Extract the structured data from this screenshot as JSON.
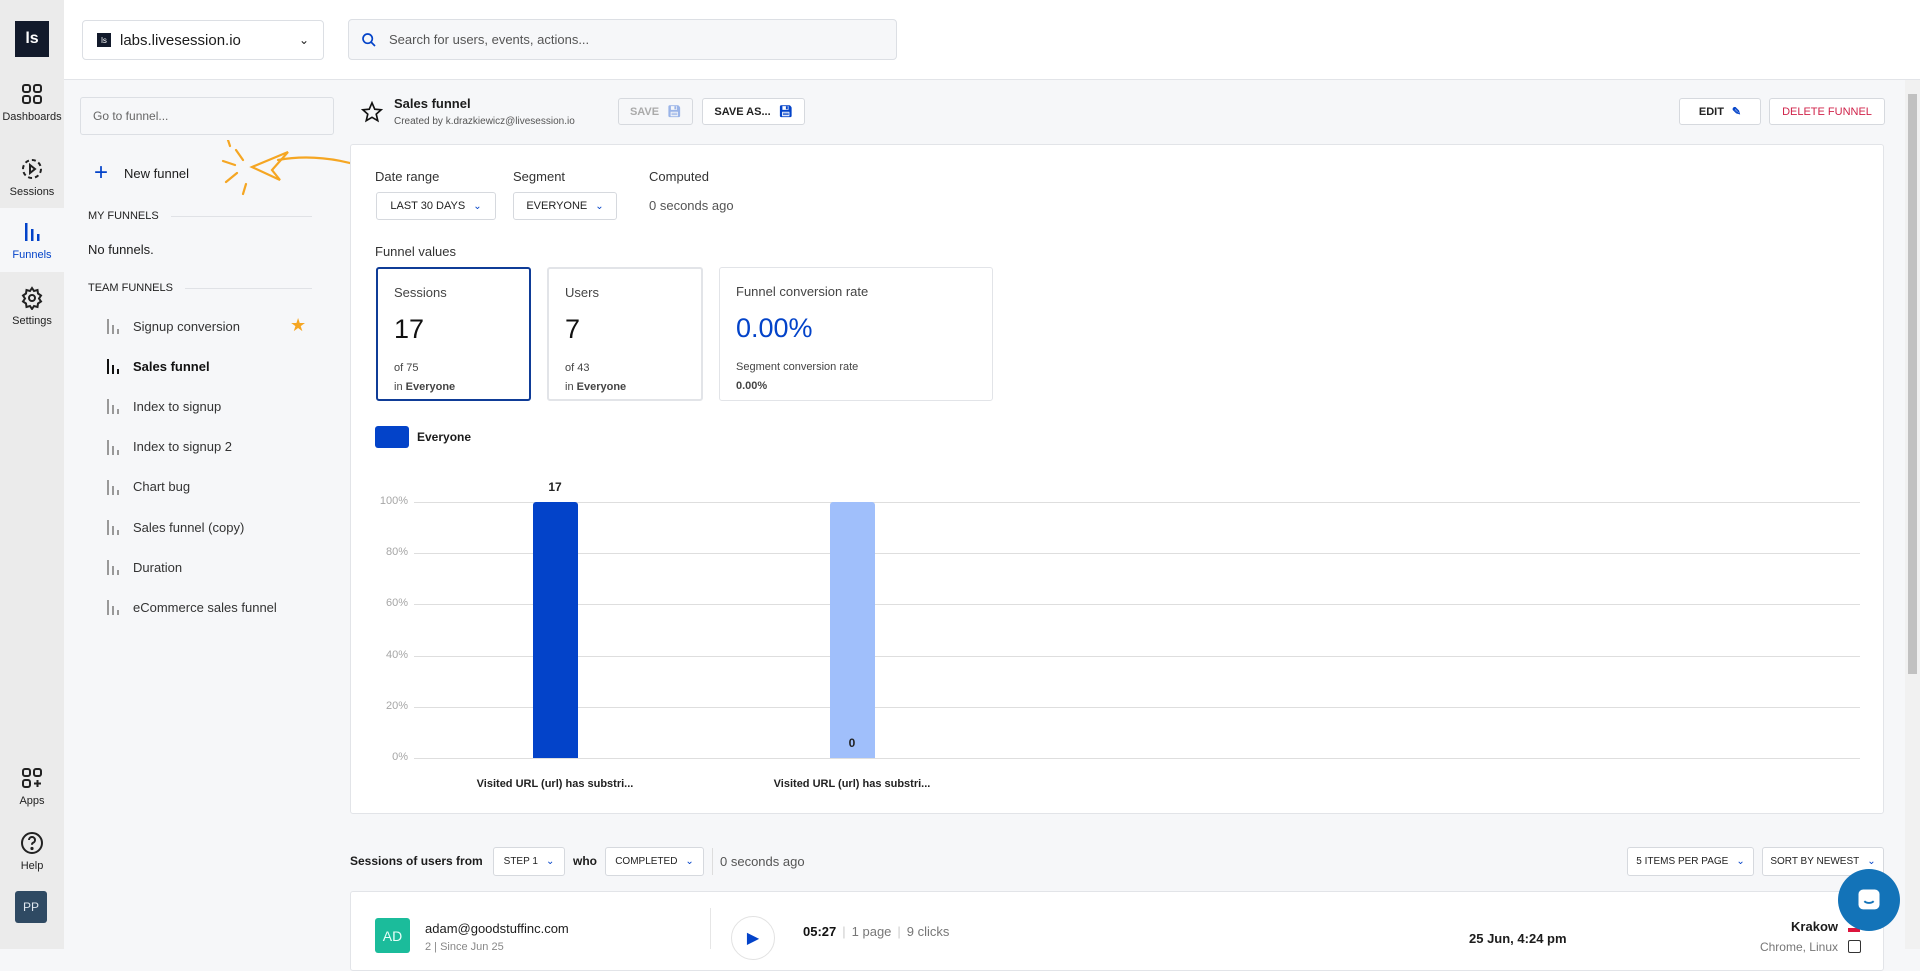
{
  "app": {
    "logo": "ls",
    "domain": "labs.livesession.io",
    "search_placeholder": "Search for users, events, actions..."
  },
  "rail": {
    "items": [
      {
        "label": "Dashboards",
        "icon": "grid-icon"
      },
      {
        "label": "Sessions",
        "icon": "play-circle-icon"
      },
      {
        "label": "Funnels",
        "icon": "funnel-chart-icon",
        "active": true
      },
      {
        "label": "Settings",
        "icon": "gear-icon"
      }
    ],
    "bottom": [
      {
        "label": "Apps",
        "icon": "apps-add-icon"
      },
      {
        "label": "Help",
        "icon": "help-icon"
      }
    ],
    "avatar": "PP"
  },
  "funnels_sidebar": {
    "search_placeholder": "Go to funnel...",
    "new_funnel": "New funnel",
    "my_funnels_title": "MY FUNNELS",
    "my_funnels_empty": "No funnels.",
    "team_funnels_title": "TEAM FUNNELS",
    "team_funnels": [
      {
        "label": "Signup conversion",
        "starred": true
      },
      {
        "label": "Sales funnel",
        "active": true
      },
      {
        "label": "Index to signup"
      },
      {
        "label": "Index to signup 2"
      },
      {
        "label": "Chart bug"
      },
      {
        "label": "Sales funnel (copy)"
      },
      {
        "label": "Duration"
      },
      {
        "label": "eCommerce sales funnel"
      }
    ]
  },
  "header": {
    "title": "Sales funnel",
    "created_by": "Created by k.drazkiewicz@livesession.io",
    "save": "SAVE",
    "save_as": "SAVE AS...",
    "edit": "EDIT",
    "delete": "DELETE FUNNEL"
  },
  "filters": {
    "date_range_label": "Date range",
    "date_range_value": "LAST 30 DAYS",
    "segment_label": "Segment",
    "segment_value": "EVERYONE",
    "computed_label": "Computed",
    "computed_value": "0 seconds ago"
  },
  "funnel_values": {
    "title": "Funnel values",
    "sessions": {
      "label": "Sessions",
      "value": "17",
      "of": "of 75",
      "in_prefix": "in",
      "in": "Everyone"
    },
    "users": {
      "label": "Users",
      "value": "7",
      "of": "of 43",
      "in_prefix": "in",
      "in": "Everyone"
    },
    "conversion": {
      "label": "Funnel conversion rate",
      "value": "0.00%",
      "segment_label": "Segment conversion rate",
      "segment_value": "0.00%"
    }
  },
  "chart_data": {
    "type": "bar",
    "legend": [
      {
        "name": "Everyone",
        "color": "#0343c9"
      }
    ],
    "legend_position": "top-left",
    "categories": [
      "Visited URL (url) has substri...",
      "Visited URL (url) has substri..."
    ],
    "series": [
      {
        "name": "Everyone",
        "values": [
          100,
          100
        ],
        "labels": [
          "17",
          "0"
        ],
        "colors": [
          "#0343c9",
          "#a0bffb"
        ]
      }
    ],
    "yticks": [
      "0%",
      "20%",
      "40%",
      "60%",
      "80%",
      "100%"
    ],
    "ylim": [
      0,
      100
    ],
    "grid": true
  },
  "sessions_list": {
    "prefix": "Sessions of users from",
    "step": "STEP 1",
    "who": "who",
    "status": "COMPLETED",
    "updated": "0 seconds ago",
    "per_page": "5 ITEMS PER PAGE",
    "sort": "SORT BY NEWEST",
    "rows": [
      {
        "initials": "AD",
        "email": "adam@goodstuffinc.com",
        "meta": "2 | Since Jun 25",
        "duration": "05:27",
        "pages": "1 page",
        "clicks": "9 clicks",
        "date": "25 Jun, 4:24 pm",
        "city": "Krakow",
        "browser": "Chrome, Linux"
      }
    ]
  },
  "colors": {
    "primary": "#0343c9",
    "light_bar": "#a0bffb",
    "danger": "#d0234a",
    "annotation": "#f5a623",
    "avatar_row": "#1bbc9b",
    "chat": "#1373b8"
  }
}
